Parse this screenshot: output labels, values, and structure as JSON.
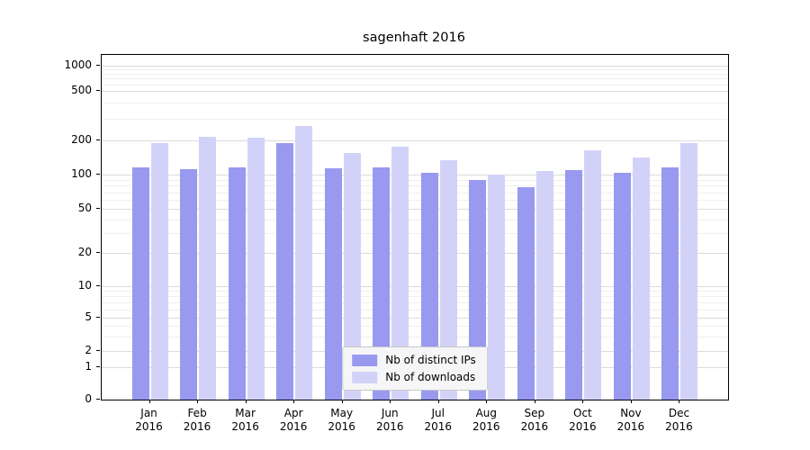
{
  "chart_data": {
    "type": "bar",
    "title": "sagenhaft 2016",
    "y_scale": "symlog",
    "grid": true,
    "legend_position": "lower center",
    "categories": [
      "Jan",
      "Feb",
      "Mar",
      "Apr",
      "May",
      "Jun",
      "Jul",
      "Aug",
      "Sep",
      "Oct",
      "Nov",
      "Dec"
    ],
    "year_label": "2016",
    "y_ticks": [
      0,
      1,
      2,
      5,
      10,
      20,
      50,
      100,
      200,
      500,
      1000
    ],
    "ylim": [
      0,
      1300
    ],
    "series": [
      {
        "name": "Nb of distinct IPs",
        "color": "#9999f0",
        "values": [
          115,
          112,
          115,
          190,
          113,
          115,
          103,
          90,
          78,
          110,
          104,
          115
        ]
      },
      {
        "name": "Nb of downloads",
        "color": "#d2d2f8",
        "values": [
          190,
          215,
          210,
          260,
          155,
          175,
          135,
          100,
          108,
          165,
          142,
          190
        ]
      }
    ]
  }
}
